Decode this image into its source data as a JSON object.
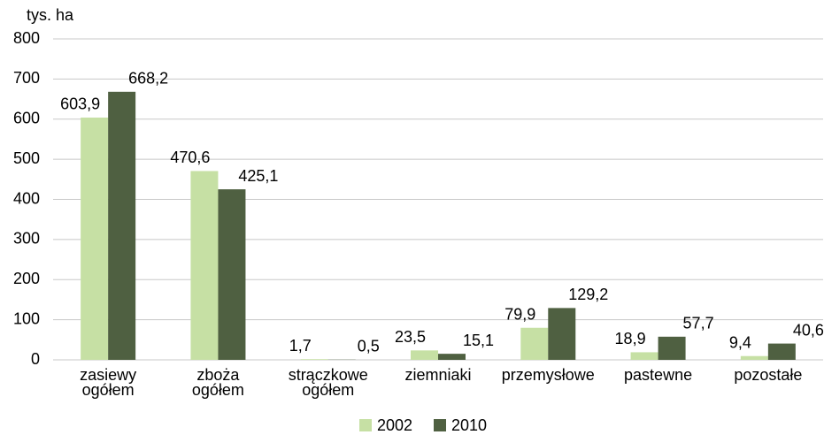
{
  "chart_data": {
    "type": "bar",
    "y_axis_label": "tys. ha",
    "categories": [
      "zasiewy ogółem",
      "zboża ogółem",
      "strączkowe ogółem",
      "ziemniaki",
      "przemysłowe",
      "pastewne",
      "pozostałe"
    ],
    "series": [
      {
        "name": "2002",
        "color": "#c6e0a4",
        "values": [
          603.9,
          470.6,
          1.7,
          23.5,
          79.9,
          18.9,
          9.4
        ],
        "value_labels": [
          "603,9",
          "470,6",
          "1,7",
          "23,5",
          "79,9",
          "18,9",
          "9,4"
        ]
      },
      {
        "name": "2010",
        "color": "#4f6041",
        "values": [
          668.2,
          425.1,
          0.5,
          15.1,
          129.2,
          57.7,
          40.6
        ],
        "value_labels": [
          "668,2",
          "425,1",
          "0,5",
          "15,1",
          "129,2",
          "57,7",
          "40,6"
        ]
      }
    ],
    "ylim": [
      0,
      800
    ],
    "yticks": [
      0,
      100,
      200,
      300,
      400,
      500,
      600,
      700,
      800
    ],
    "grid": true,
    "legend": "bottom"
  }
}
